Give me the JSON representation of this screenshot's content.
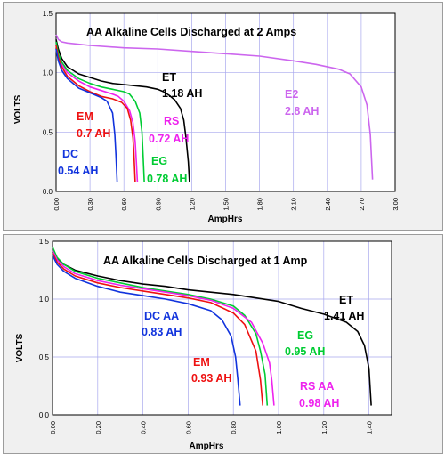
{
  "chart_data": [
    {
      "type": "line",
      "title": "AA Alkaline Cells Discharged at 2 Amps",
      "xlabel": "AmpHrs",
      "ylabel": "VOLTS",
      "xlim": [
        0,
        3.0
      ],
      "ylim": [
        0,
        1.5
      ],
      "xticks": [
        "0.00",
        "0.30",
        "0.60",
        "0.90",
        "1.20",
        "1.50",
        "1.80",
        "2.10",
        "2.40",
        "2.70",
        "3.00"
      ],
      "yticks": [
        "0.0",
        "0.5",
        "1.0",
        "1.5"
      ],
      "grid": true,
      "series": [
        {
          "name": "ET",
          "color": "#000000",
          "x": [
            0,
            0.02,
            0.05,
            0.1,
            0.2,
            0.3,
            0.4,
            0.5,
            0.6,
            0.7,
            0.8,
            0.9,
            0.95,
            1.0,
            1.05,
            1.1,
            1.13,
            1.15,
            1.17,
            1.18
          ],
          "y": [
            1.28,
            1.2,
            1.12,
            1.05,
            0.99,
            0.96,
            0.93,
            0.91,
            0.9,
            0.89,
            0.88,
            0.86,
            0.84,
            0.81,
            0.77,
            0.7,
            0.6,
            0.45,
            0.25,
            0.08
          ]
        },
        {
          "name": "E2",
          "color": "#cc66ee",
          "x": [
            0,
            0.02,
            0.05,
            0.1,
            0.3,
            0.6,
            0.9,
            1.2,
            1.5,
            1.8,
            2.1,
            2.3,
            2.5,
            2.6,
            2.7,
            2.75,
            2.78,
            2.8
          ],
          "y": [
            1.32,
            1.28,
            1.26,
            1.25,
            1.23,
            1.21,
            1.2,
            1.18,
            1.16,
            1.14,
            1.1,
            1.07,
            1.03,
            0.99,
            0.88,
            0.73,
            0.48,
            0.1
          ]
        },
        {
          "name": "RS",
          "color": "#ee22ee",
          "x": [
            0,
            0.02,
            0.05,
            0.1,
            0.2,
            0.3,
            0.4,
            0.5,
            0.55,
            0.6,
            0.65,
            0.68,
            0.7,
            0.71,
            0.72
          ],
          "y": [
            1.25,
            1.15,
            1.07,
            1.0,
            0.93,
            0.88,
            0.85,
            0.82,
            0.8,
            0.76,
            0.68,
            0.58,
            0.42,
            0.25,
            0.08
          ]
        },
        {
          "name": "EG",
          "color": "#00cc33",
          "x": [
            0,
            0.02,
            0.05,
            0.1,
            0.2,
            0.3,
            0.4,
            0.5,
            0.6,
            0.65,
            0.7,
            0.74,
            0.76,
            0.77,
            0.78
          ],
          "y": [
            1.26,
            1.16,
            1.09,
            1.02,
            0.95,
            0.91,
            0.88,
            0.86,
            0.84,
            0.82,
            0.76,
            0.66,
            0.5,
            0.3,
            0.08
          ]
        },
        {
          "name": "EM",
          "color": "#ee1111",
          "x": [
            0,
            0.02,
            0.05,
            0.1,
            0.2,
            0.3,
            0.4,
            0.5,
            0.58,
            0.63,
            0.66,
            0.68,
            0.69,
            0.7
          ],
          "y": [
            1.23,
            1.13,
            1.05,
            0.97,
            0.89,
            0.84,
            0.8,
            0.78,
            0.75,
            0.7,
            0.6,
            0.45,
            0.3,
            0.08
          ]
        },
        {
          "name": "DC",
          "color": "#1133dd",
          "x": [
            0,
            0.02,
            0.05,
            0.1,
            0.2,
            0.3,
            0.4,
            0.45,
            0.5,
            0.52,
            0.53,
            0.54
          ],
          "y": [
            1.2,
            1.1,
            1.02,
            0.95,
            0.87,
            0.83,
            0.79,
            0.76,
            0.66,
            0.48,
            0.3,
            0.08
          ]
        }
      ],
      "annotations": [
        {
          "text": "ET",
          "color": "#000000"
        },
        {
          "text": "1.18 AH",
          "color": "#000000"
        },
        {
          "text": "E2",
          "color": "#cc66ee"
        },
        {
          "text": "2.8 AH",
          "color": "#cc66ee"
        },
        {
          "text": "EM",
          "color": "#ee1111"
        },
        {
          "text": "0.7 AH",
          "color": "#ee1111"
        },
        {
          "text": "RS",
          "color": "#ee22ee"
        },
        {
          "text": "0.72 AH",
          "color": "#ee22ee"
        },
        {
          "text": "DC",
          "color": "#1133dd"
        },
        {
          "text": "0.54 AH",
          "color": "#1133dd"
        },
        {
          "text": "EG",
          "color": "#00cc33"
        },
        {
          "text": "0.78 AH",
          "color": "#00cc33"
        }
      ]
    },
    {
      "type": "line",
      "title": "AA Alkaline Cells Discharged at 1 Amp",
      "xlabel": "AmpHrs",
      "ylabel": "VOLTS",
      "xlim": [
        0,
        1.5
      ],
      "ylim": [
        0,
        1.5
      ],
      "xticks": [
        "0.00",
        "0.20",
        "0.40",
        "0.60",
        "0.80",
        "1.00",
        "1.20",
        "1.40"
      ],
      "yticks": [
        "0.0",
        "0.5",
        "1.0",
        "1.5"
      ],
      "grid": true,
      "series": [
        {
          "name": "ET",
          "color": "#000000",
          "x": [
            0,
            0.02,
            0.05,
            0.1,
            0.2,
            0.3,
            0.4,
            0.5,
            0.6,
            0.7,
            0.8,
            0.9,
            1.0,
            1.1,
            1.2,
            1.3,
            1.35,
            1.38,
            1.4,
            1.41
          ],
          "y": [
            1.42,
            1.35,
            1.3,
            1.25,
            1.2,
            1.16,
            1.13,
            1.11,
            1.08,
            1.06,
            1.04,
            1.01,
            0.98,
            0.92,
            0.87,
            0.8,
            0.72,
            0.6,
            0.4,
            0.08
          ]
        },
        {
          "name": "EG",
          "color": "#00cc33",
          "x": [
            0,
            0.02,
            0.05,
            0.1,
            0.2,
            0.3,
            0.4,
            0.5,
            0.6,
            0.7,
            0.8,
            0.85,
            0.9,
            0.92,
            0.94,
            0.95
          ],
          "y": [
            1.45,
            1.36,
            1.3,
            1.24,
            1.18,
            1.14,
            1.1,
            1.07,
            1.04,
            1.0,
            0.94,
            0.86,
            0.7,
            0.55,
            0.35,
            0.08
          ]
        },
        {
          "name": "RS AA",
          "color": "#ee22ee",
          "x": [
            0,
            0.02,
            0.05,
            0.1,
            0.2,
            0.3,
            0.4,
            0.5,
            0.6,
            0.7,
            0.8,
            0.88,
            0.93,
            0.96,
            0.97,
            0.98
          ],
          "y": [
            1.42,
            1.34,
            1.28,
            1.22,
            1.16,
            1.12,
            1.09,
            1.06,
            1.03,
            0.99,
            0.92,
            0.8,
            0.62,
            0.45,
            0.3,
            0.08
          ]
        },
        {
          "name": "EM",
          "color": "#ee1111",
          "x": [
            0,
            0.02,
            0.05,
            0.1,
            0.2,
            0.3,
            0.4,
            0.5,
            0.6,
            0.7,
            0.8,
            0.85,
            0.9,
            0.92,
            0.93
          ],
          "y": [
            1.4,
            1.32,
            1.26,
            1.2,
            1.14,
            1.1,
            1.07,
            1.04,
            1.01,
            0.97,
            0.88,
            0.78,
            0.55,
            0.3,
            0.08
          ]
        },
        {
          "name": "DC AA",
          "color": "#1133dd",
          "x": [
            0,
            0.02,
            0.05,
            0.1,
            0.2,
            0.3,
            0.4,
            0.5,
            0.6,
            0.7,
            0.75,
            0.79,
            0.81,
            0.82,
            0.83
          ],
          "y": [
            1.38,
            1.3,
            1.24,
            1.18,
            1.11,
            1.06,
            1.03,
            1.0,
            0.96,
            0.9,
            0.82,
            0.68,
            0.5,
            0.3,
            0.08
          ]
        }
      ],
      "annotations": [
        {
          "text": "ET",
          "color": "#000000"
        },
        {
          "text": "1.41 AH",
          "color": "#000000"
        },
        {
          "text": "DC AA",
          "color": "#1133dd"
        },
        {
          "text": "0.83 AH",
          "color": "#1133dd"
        },
        {
          "text": "EG",
          "color": "#00cc33"
        },
        {
          "text": "0.95 AH",
          "color": "#00cc33"
        },
        {
          "text": "EM",
          "color": "#ee1111"
        },
        {
          "text": "0.93 AH",
          "color": "#ee1111"
        },
        {
          "text": "RS AA",
          "color": "#ee22ee"
        },
        {
          "text": "0.98 AH",
          "color": "#ee22ee"
        }
      ]
    }
  ]
}
